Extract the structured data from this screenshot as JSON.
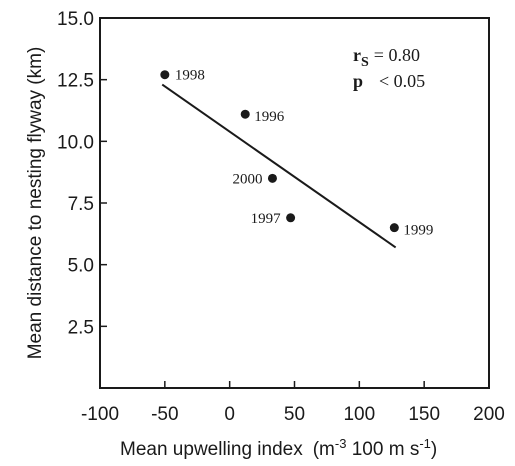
{
  "chart_data": {
    "type": "scatter",
    "xlabel_main": "Mean upwelling index",
    "xlabel_unit": "(m",
    "xlabel_exp1": "-3",
    "xlabel_mid": " 100 m s",
    "xlabel_exp2": "-1",
    "xlabel_close": ")",
    "ylabel": "Mean distance to nesting flyway (km)",
    "xlim": [
      -100,
      200
    ],
    "ylim": [
      0,
      15
    ],
    "x_ticks": [
      -100,
      -50,
      0,
      50,
      100,
      150,
      200
    ],
    "x_tick_labels": [
      "-100",
      "-50",
      "0",
      "50",
      "100",
      "150",
      "200"
    ],
    "y_ticks": [
      2.5,
      5.0,
      7.5,
      10.0,
      12.5,
      15.0
    ],
    "y_tick_labels": [
      "2.5",
      "5.0",
      "7.5",
      "10.0",
      "12.5",
      "15.0"
    ],
    "points": [
      {
        "label": "1998",
        "x": -50,
        "y": 12.7
      },
      {
        "label": "1996",
        "x": 12,
        "y": 11.1
      },
      {
        "label": "2000",
        "x": 33,
        "y": 8.5
      },
      {
        "label": "1997",
        "x": 47,
        "y": 6.9
      },
      {
        "label": "1999",
        "x": 127,
        "y": 6.5
      }
    ],
    "trend_line": {
      "x": [
        -52,
        128
      ],
      "y": [
        12.3,
        5.7
      ]
    },
    "stats": {
      "r_symbol": "r",
      "r_sub": "S",
      "r_value": "= 0.80",
      "p_symbol": "p",
      "p_value": "< 0.05"
    },
    "grid": false
  }
}
